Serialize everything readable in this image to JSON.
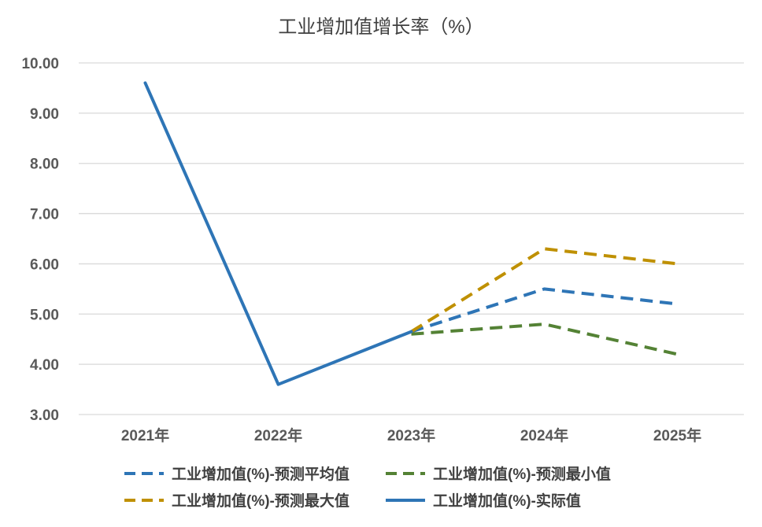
{
  "chart_data": {
    "type": "line",
    "title": "工业增加值增长率（%）",
    "xlabel": "",
    "ylabel": "",
    "categories": [
      "2021年",
      "2022年",
      "2023年",
      "2024年",
      "2025年"
    ],
    "y_ticks": [
      "3.00",
      "4.00",
      "5.00",
      "6.00",
      "7.00",
      "8.00",
      "9.00",
      "10.00"
    ],
    "ylim": [
      3,
      10
    ],
    "grid": true,
    "legend_position": "bottom",
    "series": [
      {
        "name": "工业增加值(%)-预测平均值",
        "values": [
          null,
          null,
          4.65,
          5.5,
          5.2
        ],
        "color": "#2e75b6",
        "dashed": true
      },
      {
        "name": "工业增加值(%)-预测最小值",
        "values": [
          null,
          null,
          4.6,
          4.8,
          4.2
        ],
        "color": "#548235",
        "dashed": true
      },
      {
        "name": "工业增加值(%)-预测最大值",
        "values": [
          null,
          null,
          4.65,
          6.3,
          6.0
        ],
        "color": "#bf9000",
        "dashed": true
      },
      {
        "name": "工业增加值(%)-实际值",
        "values": [
          9.6,
          3.6,
          4.65,
          null,
          null
        ],
        "color": "#2e75b6",
        "dashed": false
      }
    ]
  }
}
